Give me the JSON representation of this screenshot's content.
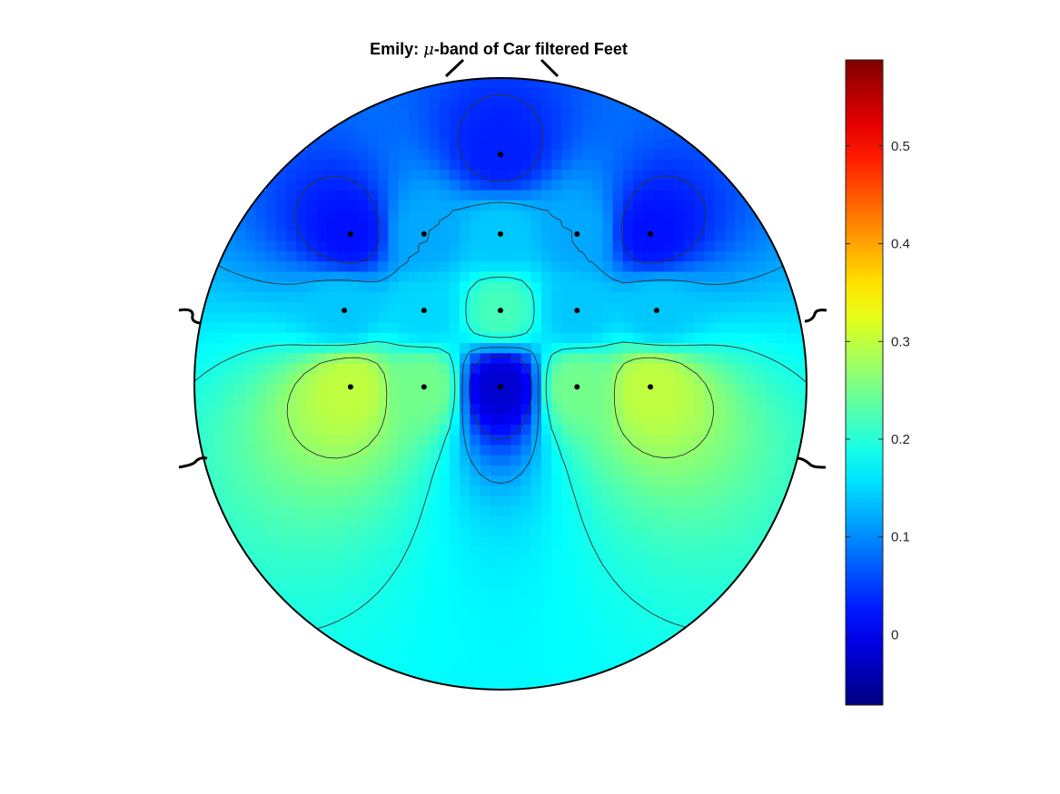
{
  "chart_data": {
    "type": "heatmap",
    "subtype": "eeg-topographic-map",
    "title": {
      "prefix": "Emily: ",
      "symbol": "μ",
      "suffix": "-band of Car filtered Feet"
    },
    "colormap": "jet",
    "color_limits": [
      -0.072,
      0.588
    ],
    "colorbar": {
      "location": "right",
      "ticks": [
        0,
        0.1,
        0.2,
        0.3,
        0.4,
        0.5
      ],
      "tick_labels": [
        "0",
        "0.1",
        "0.2",
        "0.3",
        "0.4",
        "0.5"
      ]
    },
    "contour_levels": [
      0.04,
      0.12,
      0.19,
      0.27,
      0.36,
      0.45
    ],
    "electrodes": [
      {
        "x": 0.0,
        "y": 0.75,
        "value": 0.03
      },
      {
        "x": -0.49,
        "y": 0.49,
        "value": 0.02
      },
      {
        "x": -0.25,
        "y": 0.49,
        "value": 0.12
      },
      {
        "x": 0.0,
        "y": 0.49,
        "value": 0.14
      },
      {
        "x": 0.25,
        "y": 0.49,
        "value": 0.12
      },
      {
        "x": 0.49,
        "y": 0.49,
        "value": 0.02
      },
      {
        "x": -0.51,
        "y": 0.24,
        "value": 0.14
      },
      {
        "x": -0.25,
        "y": 0.24,
        "value": 0.15
      },
      {
        "x": 0.0,
        "y": 0.24,
        "value": 0.22
      },
      {
        "x": 0.25,
        "y": 0.24,
        "value": 0.14
      },
      {
        "x": 0.51,
        "y": 0.24,
        "value": 0.14
      },
      {
        "x": -0.49,
        "y": -0.01,
        "value": 0.3
      },
      {
        "x": -0.25,
        "y": -0.01,
        "value": 0.25
      },
      {
        "x": 0.0,
        "y": -0.01,
        "value": -0.02
      },
      {
        "x": 0.25,
        "y": -0.01,
        "value": 0.25
      },
      {
        "x": 0.49,
        "y": -0.01,
        "value": 0.3
      }
    ],
    "grid": false
  }
}
